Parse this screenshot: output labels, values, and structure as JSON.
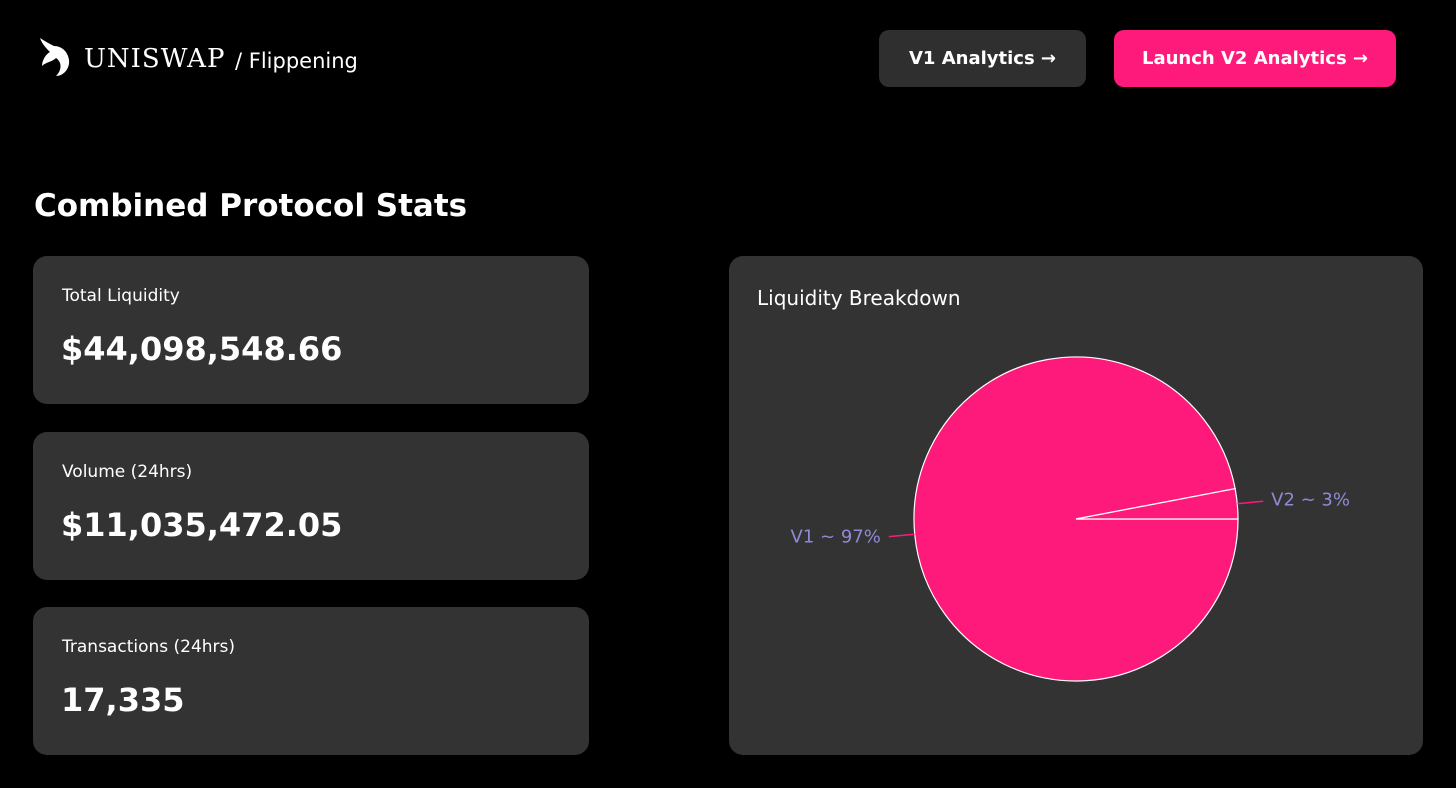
{
  "header": {
    "brand": "UNISWAP",
    "subtitle": "/ Flippening",
    "buttons": [
      "V1 Analytics →",
      "Launch V2 Analytics →"
    ]
  },
  "section_title": "Combined Protocol Stats",
  "stats": [
    {
      "label": "Total Liquidity",
      "value": "$44,098,548.66"
    },
    {
      "label": "Volume (24hrs)",
      "value": "$11,035,472.05"
    },
    {
      "label": "Transactions (24hrs)",
      "value": "17,335"
    }
  ],
  "chart_data": {
    "type": "pie",
    "title": "Liquidity Breakdown",
    "values": [
      97,
      3
    ],
    "value_labels": [
      "V1 ~ 97%",
      "V2 ~ 3%"
    ],
    "color": "#fe1a7b",
    "label_color": "#8f8ad8"
  }
}
